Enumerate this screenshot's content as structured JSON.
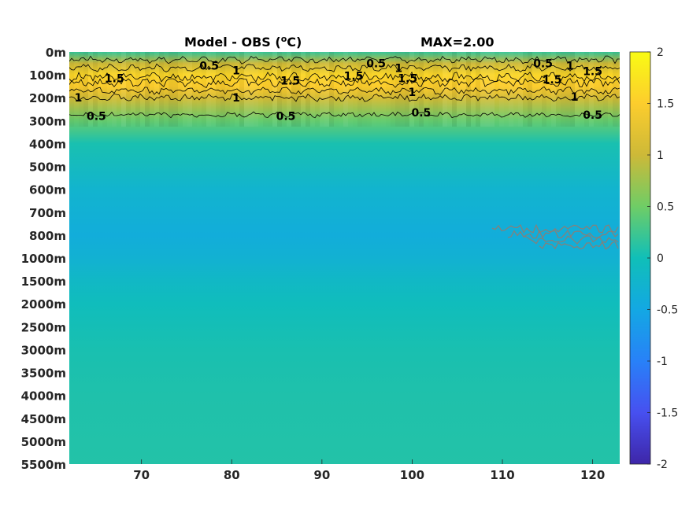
{
  "chart_data": {
    "type": "heatmap",
    "title_left": "Model - OBS (",
    "title_unit_sup": "o",
    "title_unit_end": "C)",
    "title_right": "MAX=2.00",
    "xlabel": "",
    "ylabel": "",
    "x_ticks": [
      "70",
      "80",
      "90",
      "100",
      "110",
      "120"
    ],
    "x_tick_values": [
      70,
      80,
      90,
      100,
      110,
      120
    ],
    "xlim": [
      62,
      123
    ],
    "y_ticks": [
      "0m",
      "100m",
      "200m",
      "300m",
      "400m",
      "500m",
      "600m",
      "700m",
      "800m",
      "1000m",
      "1500m",
      "2000m",
      "2500m",
      "3000m",
      "3500m",
      "4000m",
      "4500m",
      "5000m",
      "5500m"
    ],
    "colorbar": {
      "ticks": [
        "2",
        "1.5",
        "1",
        "0.5",
        "0",
        "-0.5",
        "-1",
        "-1.5",
        "-2"
      ],
      "tick_values": [
        2,
        1.5,
        1,
        0.5,
        0,
        -0.5,
        -1,
        -1.5,
        -2
      ],
      "range": [
        -2,
        2
      ],
      "colormap": "parula"
    },
    "depth_profile": [
      {
        "depth": "0m",
        "value": 0.2
      },
      {
        "depth": "50m",
        "value": 1.0
      },
      {
        "depth": "100m",
        "value": 1.6
      },
      {
        "depth": "150m",
        "value": 1.5
      },
      {
        "depth": "200m",
        "value": 1.1
      },
      {
        "depth": "300m",
        "value": 0.45
      },
      {
        "depth": "400m",
        "value": 0.05
      },
      {
        "depth": "600m",
        "value": -0.25
      },
      {
        "depth": "800m",
        "value": -0.4
      },
      {
        "depth": "1000m",
        "value": -0.3
      },
      {
        "depth": "1500m",
        "value": -0.15
      },
      {
        "depth": "2000m",
        "value": -0.05
      },
      {
        "depth": "3000m",
        "value": 0.05
      },
      {
        "depth": "4000m",
        "value": 0.08
      },
      {
        "depth": "5500m",
        "value": 0.1
      }
    ],
    "contour_labels": [
      {
        "text": "0.5",
        "x": 77.5,
        "depth": "60m"
      },
      {
        "text": "1",
        "x": 80.5,
        "depth": "80m"
      },
      {
        "text": "1.5",
        "x": 67,
        "depth": "115m"
      },
      {
        "text": "1",
        "x": 63,
        "depth": "200m"
      },
      {
        "text": "0.5",
        "x": 65,
        "depth": "280m"
      },
      {
        "text": "1",
        "x": 80.5,
        "depth": "200m"
      },
      {
        "text": "1.5",
        "x": 86.5,
        "depth": "125m"
      },
      {
        "text": "0.5",
        "x": 86,
        "depth": "280m"
      },
      {
        "text": "1.5",
        "x": 93.5,
        "depth": "105m"
      },
      {
        "text": "0.5",
        "x": 96,
        "depth": "50m"
      },
      {
        "text": "1",
        "x": 98.5,
        "depth": "70m"
      },
      {
        "text": "1.5",
        "x": 99.5,
        "depth": "115m"
      },
      {
        "text": "1",
        "x": 100,
        "depth": "175m"
      },
      {
        "text": "0.5",
        "x": 101,
        "depth": "265m"
      },
      {
        "text": "1.5",
        "x": 115.5,
        "depth": "120m"
      },
      {
        "text": "0.5",
        "x": 114.5,
        "depth": "50m"
      },
      {
        "text": "1",
        "x": 117.5,
        "depth": "60m"
      },
      {
        "text": "1.5",
        "x": 120,
        "depth": "85m"
      },
      {
        "text": "1",
        "x": 118,
        "depth": "195m"
      },
      {
        "text": "0.5",
        "x": 120,
        "depth": "275m"
      }
    ],
    "grid": false,
    "legend": "colorbar-right"
  }
}
